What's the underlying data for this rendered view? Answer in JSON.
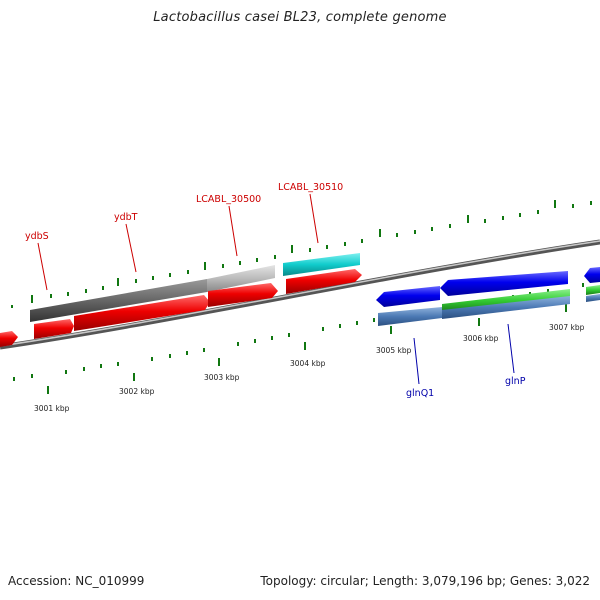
{
  "title": "Lactobacillus casei BL23, complete genome",
  "accession": "Accession: NC_010999",
  "topology": "Topology: circular; Length: 3,079,196 bp; Genes: 3,022",
  "kbp_labels": [
    "3001 kbp",
    "3002 kbp",
    "3003 kbp",
    "3004 kbp",
    "3005 kbp",
    "3006 kbp",
    "3007 kbp"
  ],
  "gene_labels": {
    "ydbS": "ydbS",
    "ydbT": "ydbT",
    "LCABL_30500": "LCABL_30500",
    "LCABL_30510": "LCABL_30510",
    "glnQ1": "glnQ1",
    "glnP": "glnP"
  },
  "colors": {
    "gene_red": "#ee0000",
    "gene_dark_gray": "#666666",
    "gene_light_gray": "#bbbbbb",
    "gene_cyan": "#11cccc",
    "gene_blue": "#0000ee",
    "gene_green": "#33cc33",
    "gene_steel_blue": "#4b79b4",
    "tick_green": "#117711",
    "label_red": "#cc0000",
    "label_blue": "#0000aa"
  }
}
